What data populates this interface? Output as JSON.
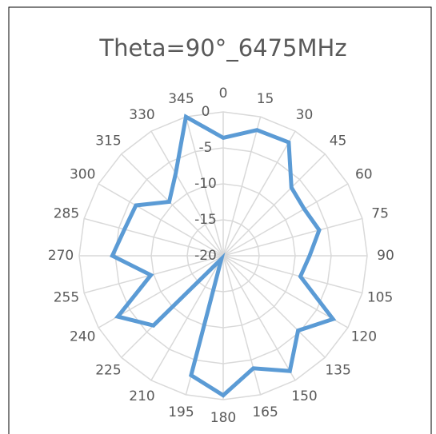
{
  "chart_data": {
    "type": "radar",
    "title": "Theta=90°_6475MHz",
    "categories": [
      "0",
      "15",
      "30",
      "45",
      "60",
      "75",
      "90",
      "105",
      "120",
      "135",
      "150",
      "165",
      "180",
      "195",
      "210",
      "225",
      "240",
      "255",
      "270",
      "285",
      "300",
      "315",
      "330",
      "345"
    ],
    "series": [
      {
        "name": "Theta=90°_6475MHz",
        "color": "#5b9bd5",
        "values": [
          -3.6,
          -1.9,
          -1.8,
          -6.6,
          -7,
          -6.2,
          -8,
          -8.9,
          -2.4,
          -5.3,
          -1.5,
          -3.8,
          -0.6,
          -2.8,
          -19.5,
          -6.3,
          -3.1,
          -9.6,
          -4.6,
          -5.8,
          -6,
          -9.4,
          -6.8,
          0
        ]
      }
    ],
    "ylim": [
      -20,
      0
    ],
    "yticks": [
      -20,
      -15,
      -10,
      -5,
      0
    ],
    "grid": true
  }
}
